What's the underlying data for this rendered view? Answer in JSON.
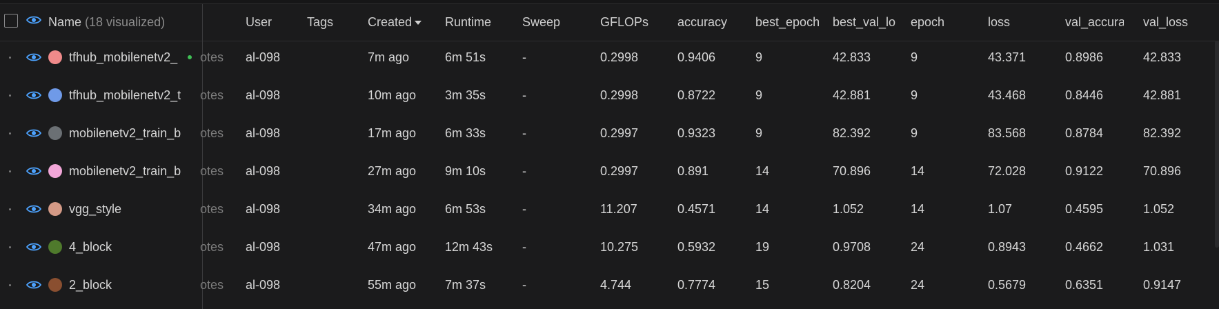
{
  "header": {
    "name_label": "Name",
    "name_count": "(18 visualized)",
    "columns": [
      "User",
      "Tags",
      "Created",
      "Runtime",
      "Sweep",
      "GFLOPs",
      "accuracy",
      "best_epoch",
      "best_val_lo",
      "epoch",
      "loss",
      "val_accurac",
      "val_loss"
    ]
  },
  "colors": {
    "accent": "#4da3ff",
    "background": "#1b1b1c"
  },
  "rows": [
    {
      "name": "tfhub_mobilenetv2_",
      "color": "#f08a8a",
      "notes": "otes",
      "user": "al-098",
      "tags": "",
      "created": "7m ago",
      "runtime": "6m 51s",
      "sweep": "-",
      "gflops": "0.2998",
      "accuracy": "0.9406",
      "best_epoch": "9",
      "best_val_loss": "42.833",
      "epoch": "9",
      "loss": "43.371",
      "val_accuracy": "0.8986",
      "val_loss": "42.833"
    },
    {
      "name": "tfhub_mobilenetv2_t",
      "color": "#6f9ae8",
      "notes": "otes",
      "user": "al-098",
      "tags": "",
      "created": "10m ago",
      "runtime": "3m 35s",
      "sweep": "-",
      "gflops": "0.2998",
      "accuracy": "0.8722",
      "best_epoch": "9",
      "best_val_loss": "42.881",
      "epoch": "9",
      "loss": "43.468",
      "val_accuracy": "0.8446",
      "val_loss": "42.881"
    },
    {
      "name": "mobilenetv2_train_b",
      "color": "#6b7074",
      "notes": "otes",
      "user": "al-098",
      "tags": "",
      "created": "17m ago",
      "runtime": "6m 33s",
      "sweep": "-",
      "gflops": "0.2997",
      "accuracy": "0.9323",
      "best_epoch": "9",
      "best_val_loss": "82.392",
      "epoch": "9",
      "loss": "83.568",
      "val_accuracy": "0.8784",
      "val_loss": "82.392"
    },
    {
      "name": "mobilenetv2_train_b",
      "color": "#f2a6d8",
      "notes": "otes",
      "user": "al-098",
      "tags": "",
      "created": "27m ago",
      "runtime": "9m 10s",
      "sweep": "-",
      "gflops": "0.2997",
      "accuracy": "0.891",
      "best_epoch": "14",
      "best_val_loss": "70.896",
      "epoch": "14",
      "loss": "72.028",
      "val_accuracy": "0.9122",
      "val_loss": "70.896"
    },
    {
      "name": "vgg_style",
      "color": "#d49a86",
      "notes": "otes",
      "user": "al-098",
      "tags": "",
      "created": "34m ago",
      "runtime": "6m 53s",
      "sweep": "-",
      "gflops": "11.207",
      "accuracy": "0.4571",
      "best_epoch": "14",
      "best_val_loss": "1.052",
      "epoch": "14",
      "loss": "1.07",
      "val_accuracy": "0.4595",
      "val_loss": "1.052"
    },
    {
      "name": "4_block",
      "color": "#4f7a2c",
      "notes": "otes",
      "user": "al-098",
      "tags": "",
      "created": "47m ago",
      "runtime": "12m 43s",
      "sweep": "-",
      "gflops": "10.275",
      "accuracy": "0.5932",
      "best_epoch": "19",
      "best_val_loss": "0.9708",
      "epoch": "24",
      "loss": "0.8943",
      "val_accuracy": "0.4662",
      "val_loss": "1.031"
    },
    {
      "name": "2_block",
      "color": "#8a4f30",
      "notes": "otes",
      "user": "al-098",
      "tags": "",
      "created": "55m ago",
      "runtime": "7m 37s",
      "sweep": "-",
      "gflops": "4.744",
      "accuracy": "0.7774",
      "best_epoch": "15",
      "best_val_loss": "0.8204",
      "epoch": "24",
      "loss": "0.5679",
      "val_accuracy": "0.6351",
      "val_loss": "0.9147"
    }
  ]
}
